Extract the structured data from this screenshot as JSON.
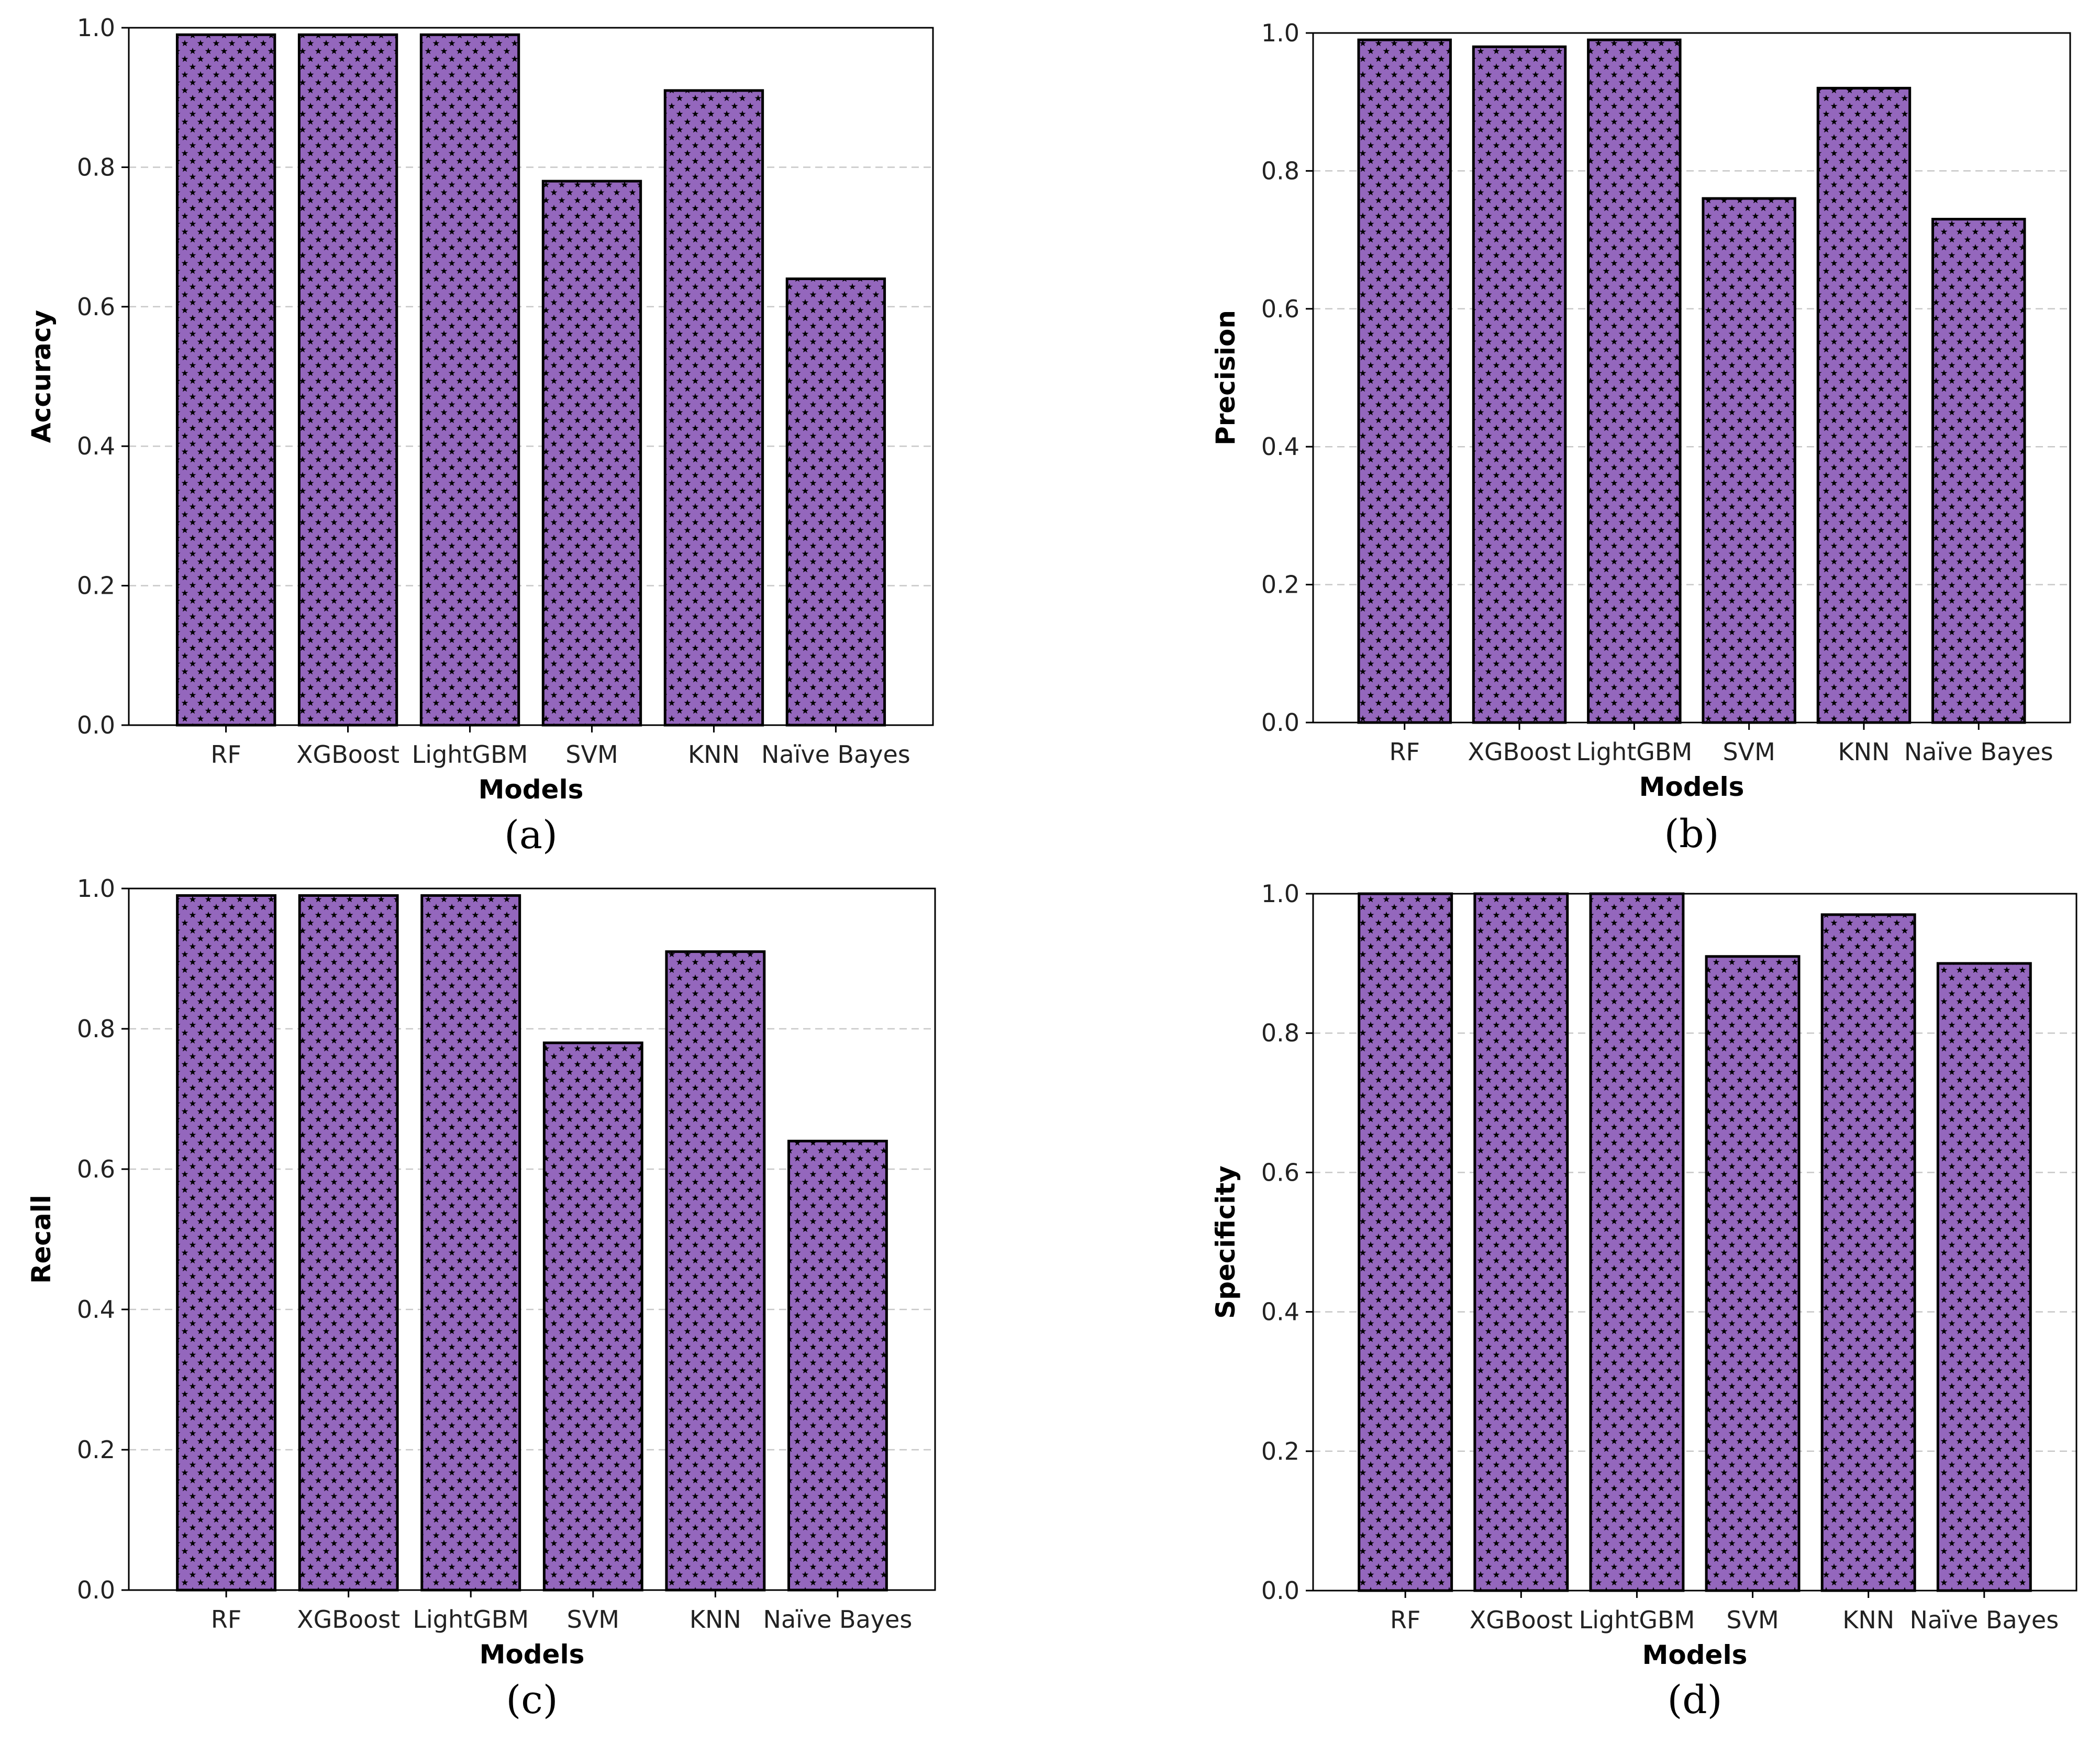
{
  "style": {
    "bar_color": "#9467bd",
    "hatch_color": "#000000",
    "bar_edge": "#000000",
    "grid_color": "#c8c8c8"
  },
  "chart_data": [
    {
      "id": "a",
      "type": "bar",
      "panel_label": "(a)",
      "title": "",
      "xlabel": "Models",
      "ylabel": "Accuracy",
      "categories": [
        "RF",
        "XGBoost",
        "LightGBM",
        "SVM",
        "KNN",
        "Naïve Bayes"
      ],
      "values": [
        0.99,
        0.99,
        0.99,
        0.78,
        0.91,
        0.64
      ],
      "ylim": [
        0,
        1.0
      ],
      "yticks": [
        "0.0",
        "0.2",
        "0.4",
        "0.6",
        "0.8",
        "1.0"
      ],
      "grid": "y-dashed"
    },
    {
      "id": "b",
      "type": "bar",
      "panel_label": "(b)",
      "title": "",
      "xlabel": "Models",
      "ylabel": "Precision",
      "categories": [
        "RF",
        "XGBoost",
        "LightGBM",
        "SVM",
        "KNN",
        "Naïve Bayes"
      ],
      "values": [
        0.99,
        0.98,
        0.99,
        0.76,
        0.92,
        0.73
      ],
      "ylim": [
        0,
        1.0
      ],
      "yticks": [
        "0.0",
        "0.2",
        "0.4",
        "0.6",
        "0.8",
        "1.0"
      ],
      "grid": "y-dashed"
    },
    {
      "id": "c",
      "type": "bar",
      "panel_label": "(c)",
      "title": "",
      "xlabel": "Models",
      "ylabel": "Recall",
      "categories": [
        "RF",
        "XGBoost",
        "LightGBM",
        "SVM",
        "KNN",
        "Naïve Bayes"
      ],
      "values": [
        0.99,
        0.99,
        0.99,
        0.78,
        0.91,
        0.64
      ],
      "ylim": [
        0,
        1.0
      ],
      "yticks": [
        "0.0",
        "0.2",
        "0.4",
        "0.6",
        "0.8",
        "1.0"
      ],
      "grid": "y-dashed"
    },
    {
      "id": "d",
      "type": "bar",
      "panel_label": "(d)",
      "title": "",
      "xlabel": "Models",
      "ylabel": "Specificity",
      "categories": [
        "RF",
        "XGBoost",
        "LightGBM",
        "SVM",
        "KNN",
        "Naïve Bayes"
      ],
      "values": [
        1.0,
        1.0,
        1.0,
        0.91,
        0.97,
        0.9
      ],
      "ylim": [
        0,
        1.0
      ],
      "yticks": [
        "0.0",
        "0.2",
        "0.4",
        "0.6",
        "0.8",
        "1.0"
      ],
      "grid": "y-dashed"
    }
  ]
}
